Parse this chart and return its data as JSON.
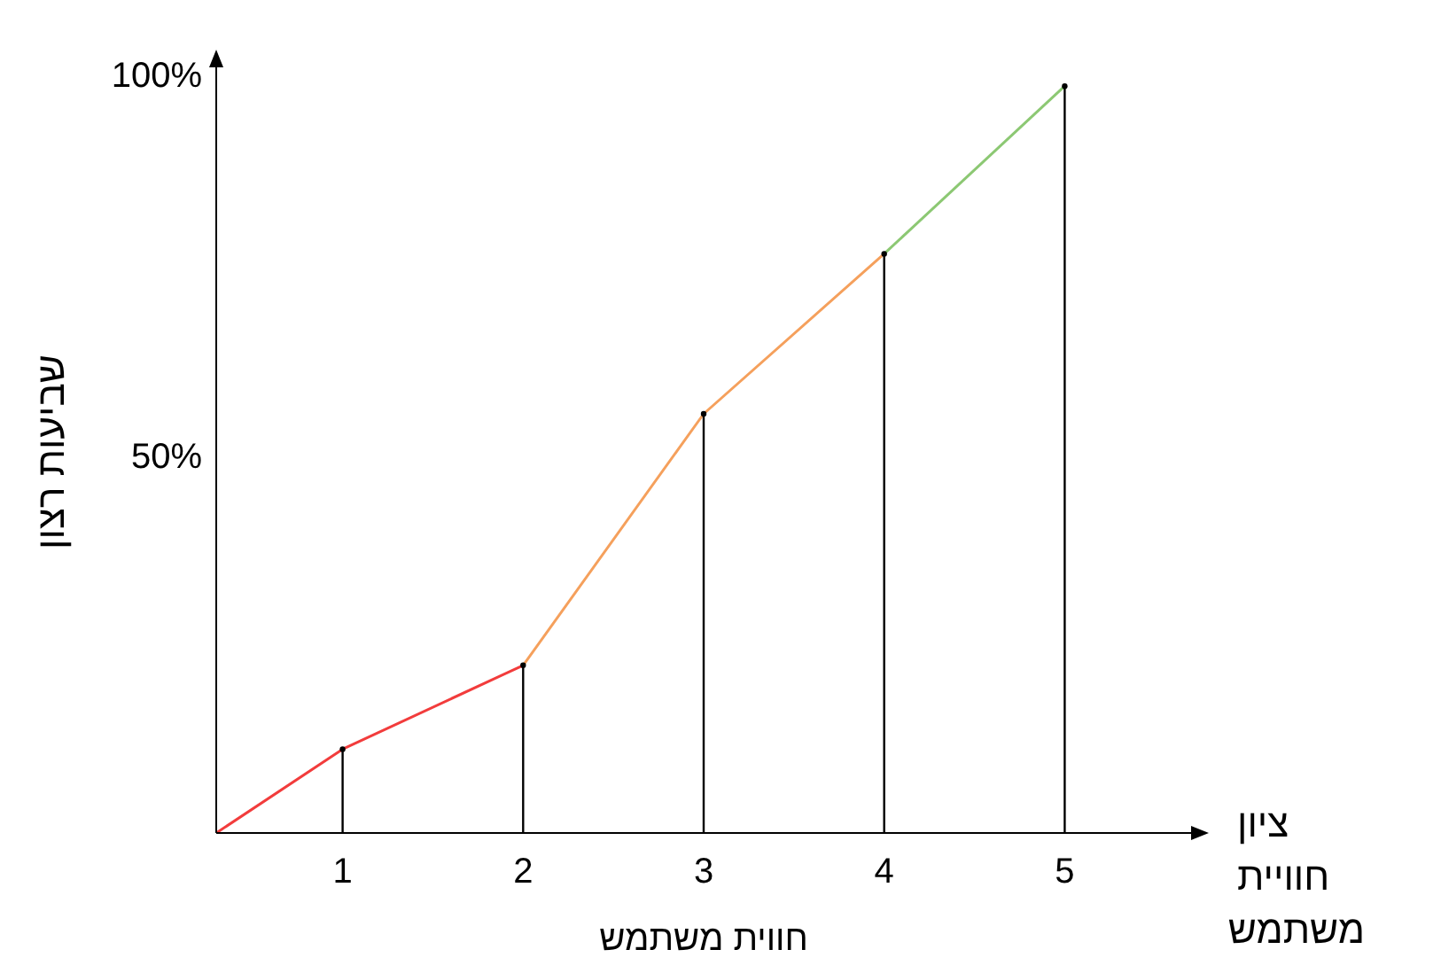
{
  "chart_data": {
    "type": "line",
    "xlabel": "חווית משתמש",
    "ylabel": "שביעות רצון",
    "annotations": [
      "ציון חוויית משתמש"
    ],
    "xlim": [
      0.3,
      5.7
    ],
    "xticks": [
      1,
      2,
      3,
      4,
      5
    ],
    "ylim": [
      0,
      100
    ],
    "yticks": [
      {
        "value": 50,
        "label": "50%"
      },
      {
        "value": 100,
        "label": "100%"
      }
    ],
    "marker": "none",
    "line_style": "solid",
    "series": [
      {
        "color": "#f23c3c",
        "x": [
          0.3,
          1,
          2
        ],
        "values": [
          0,
          11,
          22
        ]
      },
      {
        "color": "#f5a05c",
        "x": [
          2,
          3,
          4
        ],
        "values": [
          22,
          55,
          76
        ]
      },
      {
        "color": "#8cc873",
        "x": [
          4,
          5
        ],
        "values": [
          76,
          98
        ]
      },
      {
        "type": "lollipop",
        "marker": "circle",
        "color": "#000000",
        "x": [
          1,
          2,
          3,
          4,
          5
        ],
        "values": [
          11,
          22,
          55,
          76,
          98
        ]
      }
    ]
  }
}
